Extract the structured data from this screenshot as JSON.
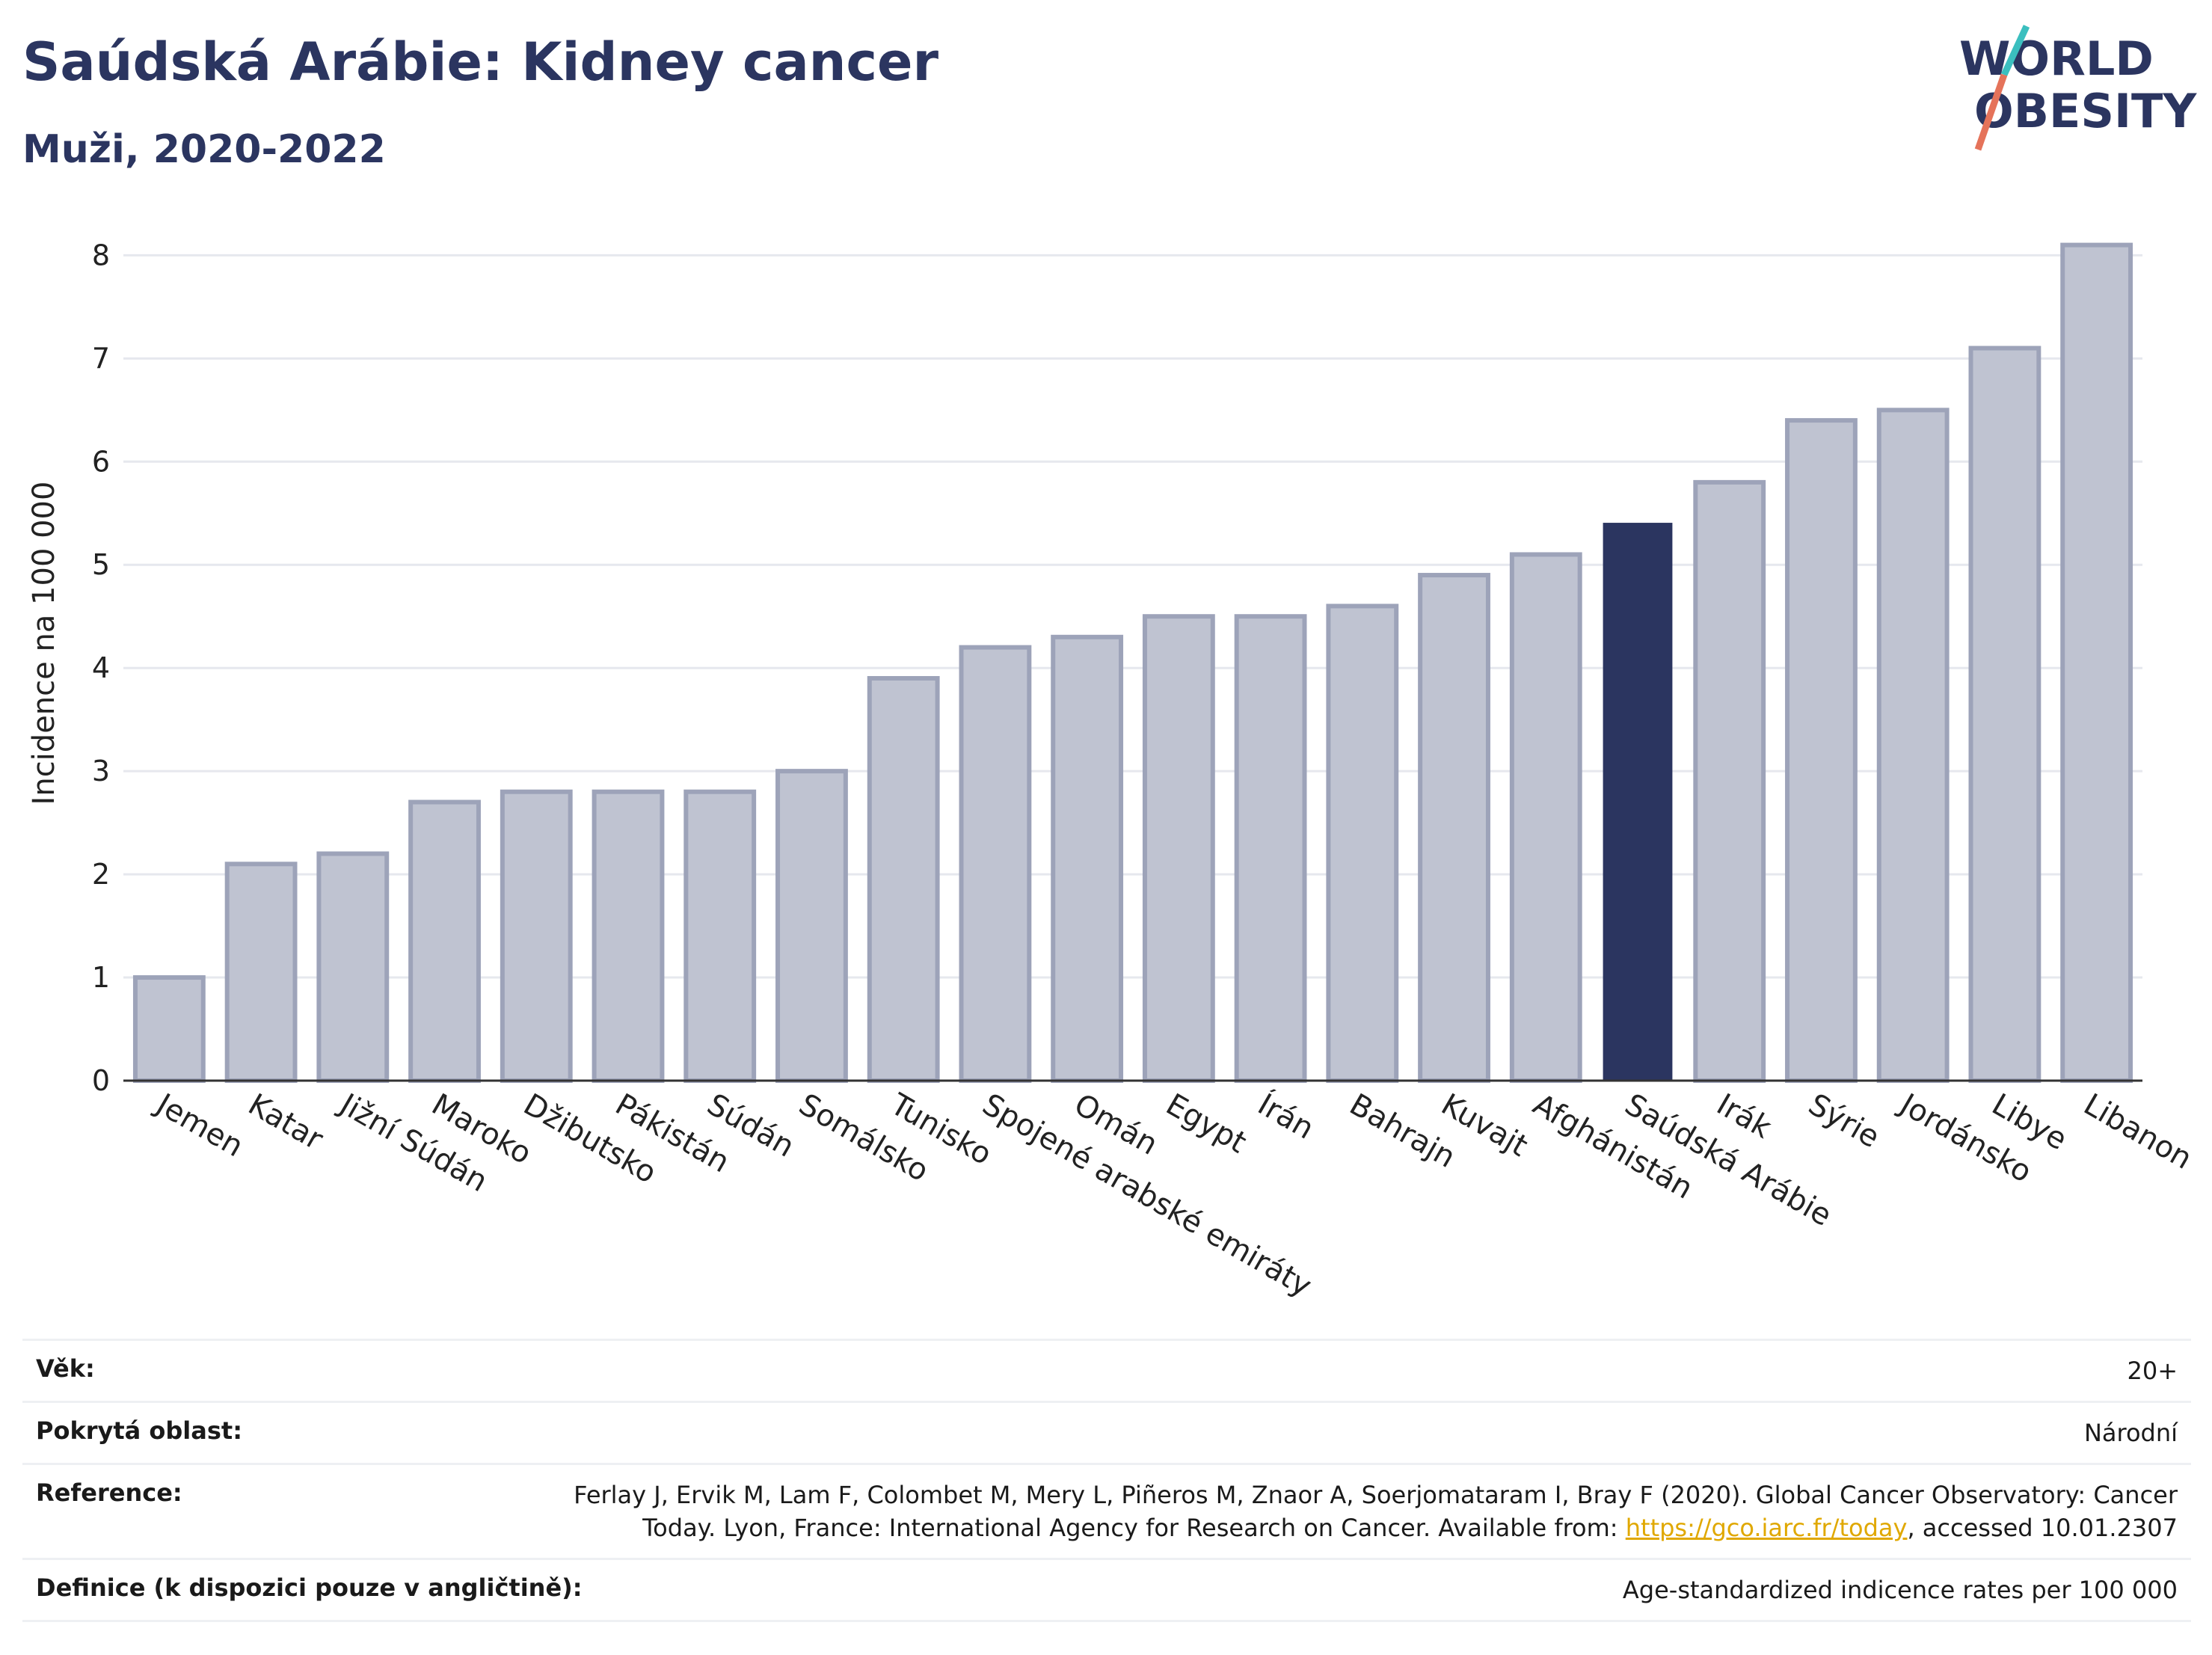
{
  "header": {
    "title": "Saúdská Arábie: Kidney cancer",
    "subtitle": "Muži, 2020-2022"
  },
  "logo": {
    "line1": "WORLD",
    "line2": "OBESITY",
    "colors": {
      "text": "#2b3560",
      "slash_teal": "#3bbfbf",
      "slash_red": "#e5735a"
    }
  },
  "chart_data": {
    "type": "bar",
    "ylabel": "Incidence na 100 000",
    "ylim": [
      0,
      8.3
    ],
    "yticks": [
      0,
      1,
      2,
      3,
      4,
      5,
      6,
      7,
      8
    ],
    "grid": true,
    "categories": [
      "Jemen",
      "Katar",
      "Jižní Súdán",
      "Maroko",
      "Džibutsko",
      "Pákistán",
      "Súdán",
      "Somálsko",
      "Tunisko",
      "Spojené arabské emiráty",
      "Omán",
      "Egypt",
      "Írán",
      "Bahrajn",
      "Kuvajt",
      "Afghánistán",
      "Saúdská Arábie",
      "Irák",
      "Sýrie",
      "Jordánsko",
      "Libye",
      "Libanon"
    ],
    "values": [
      1.0,
      2.1,
      2.2,
      2.7,
      2.8,
      2.8,
      2.8,
      3.0,
      3.9,
      4.2,
      4.3,
      4.5,
      4.5,
      4.6,
      4.9,
      5.1,
      5.4,
      5.8,
      6.4,
      6.5,
      7.1,
      8.1
    ],
    "highlight": "Saúdská Arábie",
    "colors": {
      "bar": "#bfc3d1",
      "bar_border": "#9da3b9",
      "highlight": "#2b3560",
      "grid": "#e6e8ee"
    }
  },
  "meta": {
    "age_label": "Věk:",
    "age_value": "20+",
    "coverage_label": "Pokrytá oblast:",
    "coverage_value": "Národní",
    "reference_label": "Reference:",
    "reference_text_1": "Ferlay J, Ervik M, Lam F, Colombet M, Mery L, Piñeros M, Znaor A, Soerjomataram I, Bray F (2020). Global Cancer Observatory: Cancer Today. Lyon, France: International Agency for Research on Cancer. Available from: ",
    "reference_link": "https://gco.iarc.fr/today",
    "reference_text_2": ", accessed 10.01.2307",
    "definition_label": "Definice (k dispozici pouze v angličtině):",
    "definition_value": "Age-standardized indicence rates per 100 000"
  }
}
